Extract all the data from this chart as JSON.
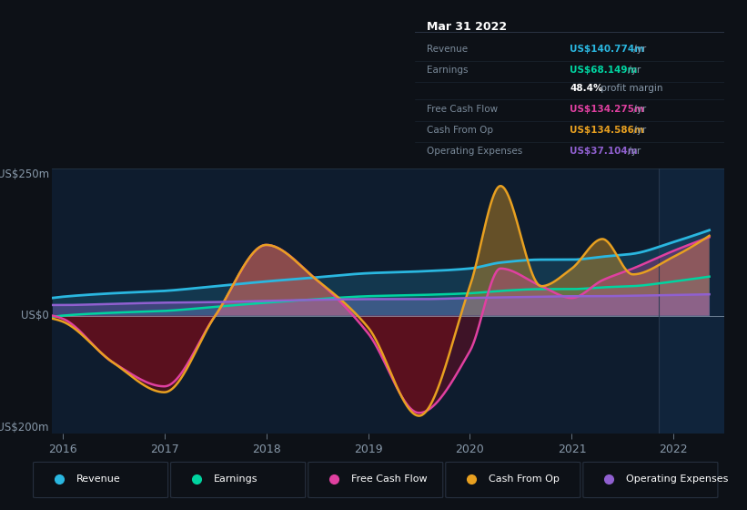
{
  "bg_color": "#0d1117",
  "plot_bg_color": "#0e1c2e",
  "x_min": 2015.9,
  "x_max": 2022.5,
  "y_min": -200,
  "y_max": 250,
  "x_ticks": [
    2016,
    2017,
    2018,
    2019,
    2020,
    2021,
    2022
  ],
  "colors": {
    "revenue": "#2ab7e0",
    "earnings": "#00d4a0",
    "free_cash_flow": "#e040a0",
    "cash_from_op": "#e8a020",
    "operating_expenses": "#9060d0"
  },
  "tooltip": {
    "date": "Mar 31 2022",
    "revenue_label": "Revenue",
    "revenue_val": "US$140.774m",
    "earnings_label": "Earnings",
    "earnings_val": "US$68.149m",
    "margin": "48.4% profit margin",
    "fcf_label": "Free Cash Flow",
    "fcf_val": "US$134.275m",
    "cfop_label": "Cash From Op",
    "cfop_val": "US$134.586m",
    "opex_label": "Operating Expenses",
    "opex_val": "US$37.104m"
  },
  "legend": [
    {
      "label": "Revenue",
      "color": "#2ab7e0"
    },
    {
      "label": "Earnings",
      "color": "#00d4a0"
    },
    {
      "label": "Free Cash Flow",
      "color": "#e040a0"
    },
    {
      "label": "Cash From Op",
      "color": "#e8a020"
    },
    {
      "label": "Operating Expenses",
      "color": "#9060d0"
    }
  ]
}
